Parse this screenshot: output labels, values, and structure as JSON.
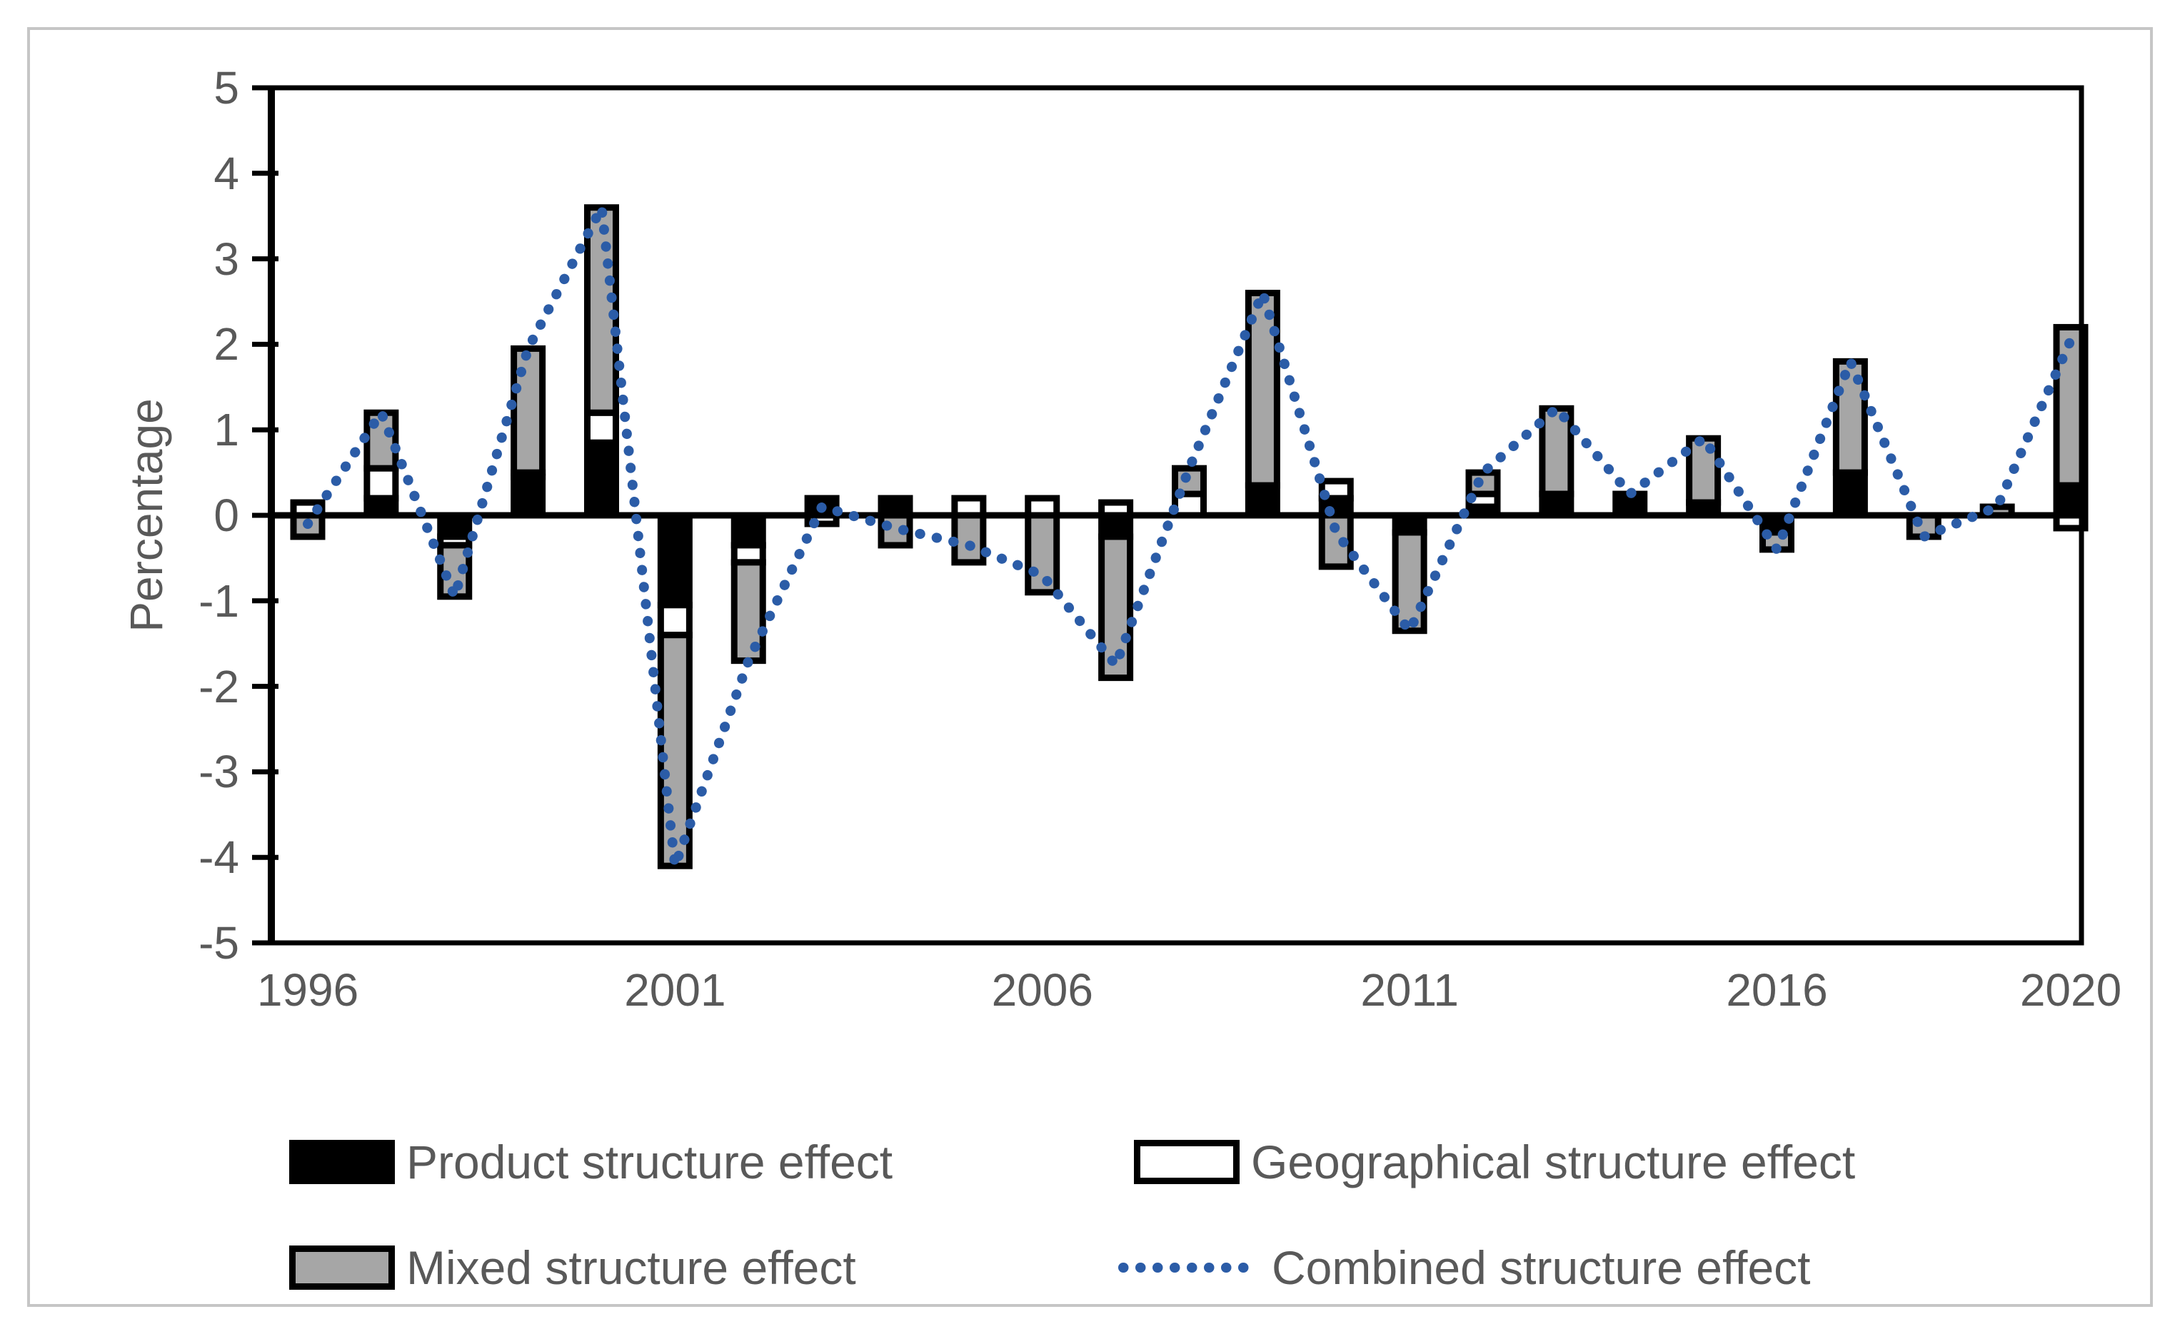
{
  "figure": {
    "background": "#ffffff",
    "frame_color": "#c6c6c6"
  },
  "chart_data": {
    "type": "bar",
    "subtype": "stacked-bar-with-line-overlay",
    "title": "",
    "xlabel": "",
    "ylabel": "Percentage",
    "ylim": [
      -5,
      5
    ],
    "grid": false,
    "legend_position": "bottom",
    "axis_color": "#000000",
    "tick_label_color": "#595959",
    "ytick_labels": [
      "5",
      "4",
      "3",
      "2",
      "1",
      "0",
      "-1",
      "-2",
      "-3",
      "-4",
      "-5"
    ],
    "ytick_values": [
      5,
      4,
      3,
      2,
      1,
      0,
      -1,
      -2,
      -3,
      -4,
      -5
    ],
    "xtick_labels": [
      "1996",
      "2001",
      "2006",
      "2011",
      "2016",
      "2020"
    ],
    "xtick_years": [
      1996,
      2001,
      2006,
      2011,
      2016,
      2020
    ],
    "categories": [
      1996,
      1997,
      1998,
      1999,
      2000,
      2001,
      2002,
      2003,
      2004,
      2005,
      2006,
      2007,
      2008,
      2009,
      2010,
      2011,
      2012,
      2013,
      2014,
      2015,
      2016,
      2017,
      2018,
      2019,
      2020
    ],
    "series": [
      {
        "name": "Product structure effect",
        "role": "bar",
        "color": "#000000",
        "values": [
          0,
          0.2,
          -0.25,
          0.45,
          0.85,
          -1.05,
          -0.35,
          0.2,
          0.15,
          0,
          0,
          -0.25,
          0,
          0.35,
          0.2,
          -0.2,
          0.1,
          0.25,
          0.25,
          0.15,
          -0.2,
          0.5,
          0,
          0,
          0.35
        ]
      },
      {
        "name": "Geographical structure effect",
        "role": "bar",
        "color": "#ffffff",
        "values": [
          0.15,
          0.35,
          -0.1,
          0.05,
          0.35,
          -0.35,
          -0.2,
          -0.1,
          0.05,
          0.2,
          0.2,
          0.15,
          0.25,
          0,
          0.2,
          0,
          0.15,
          0,
          0,
          0,
          0,
          0,
          0,
          0,
          -0.15
        ]
      },
      {
        "name": "Mixed structure effect",
        "role": "bar",
        "color": "#a6a6a6",
        "values": [
          -0.25,
          0.65,
          -0.6,
          1.45,
          2.4,
          -2.7,
          -1.15,
          0,
          -0.35,
          -0.55,
          -0.9,
          -1.65,
          0.3,
          2.25,
          -0.6,
          -1.15,
          0.25,
          1.0,
          0,
          0.75,
          -0.2,
          1.3,
          -0.25,
          0.1,
          1.85
        ]
      },
      {
        "name": "Combined structure effect",
        "role": "line",
        "style": "dotted",
        "color": "#2b5ca7",
        "values": [
          -0.1,
          1.2,
          -0.95,
          1.95,
          3.6,
          -4.1,
          -1.7,
          0.1,
          -0.15,
          -0.35,
          -0.7,
          -1.75,
          0.55,
          2.6,
          -0.2,
          -1.35,
          0.5,
          1.25,
          0.25,
          0.9,
          -0.4,
          1.8,
          -0.25,
          0.1,
          2.05
        ]
      }
    ]
  }
}
